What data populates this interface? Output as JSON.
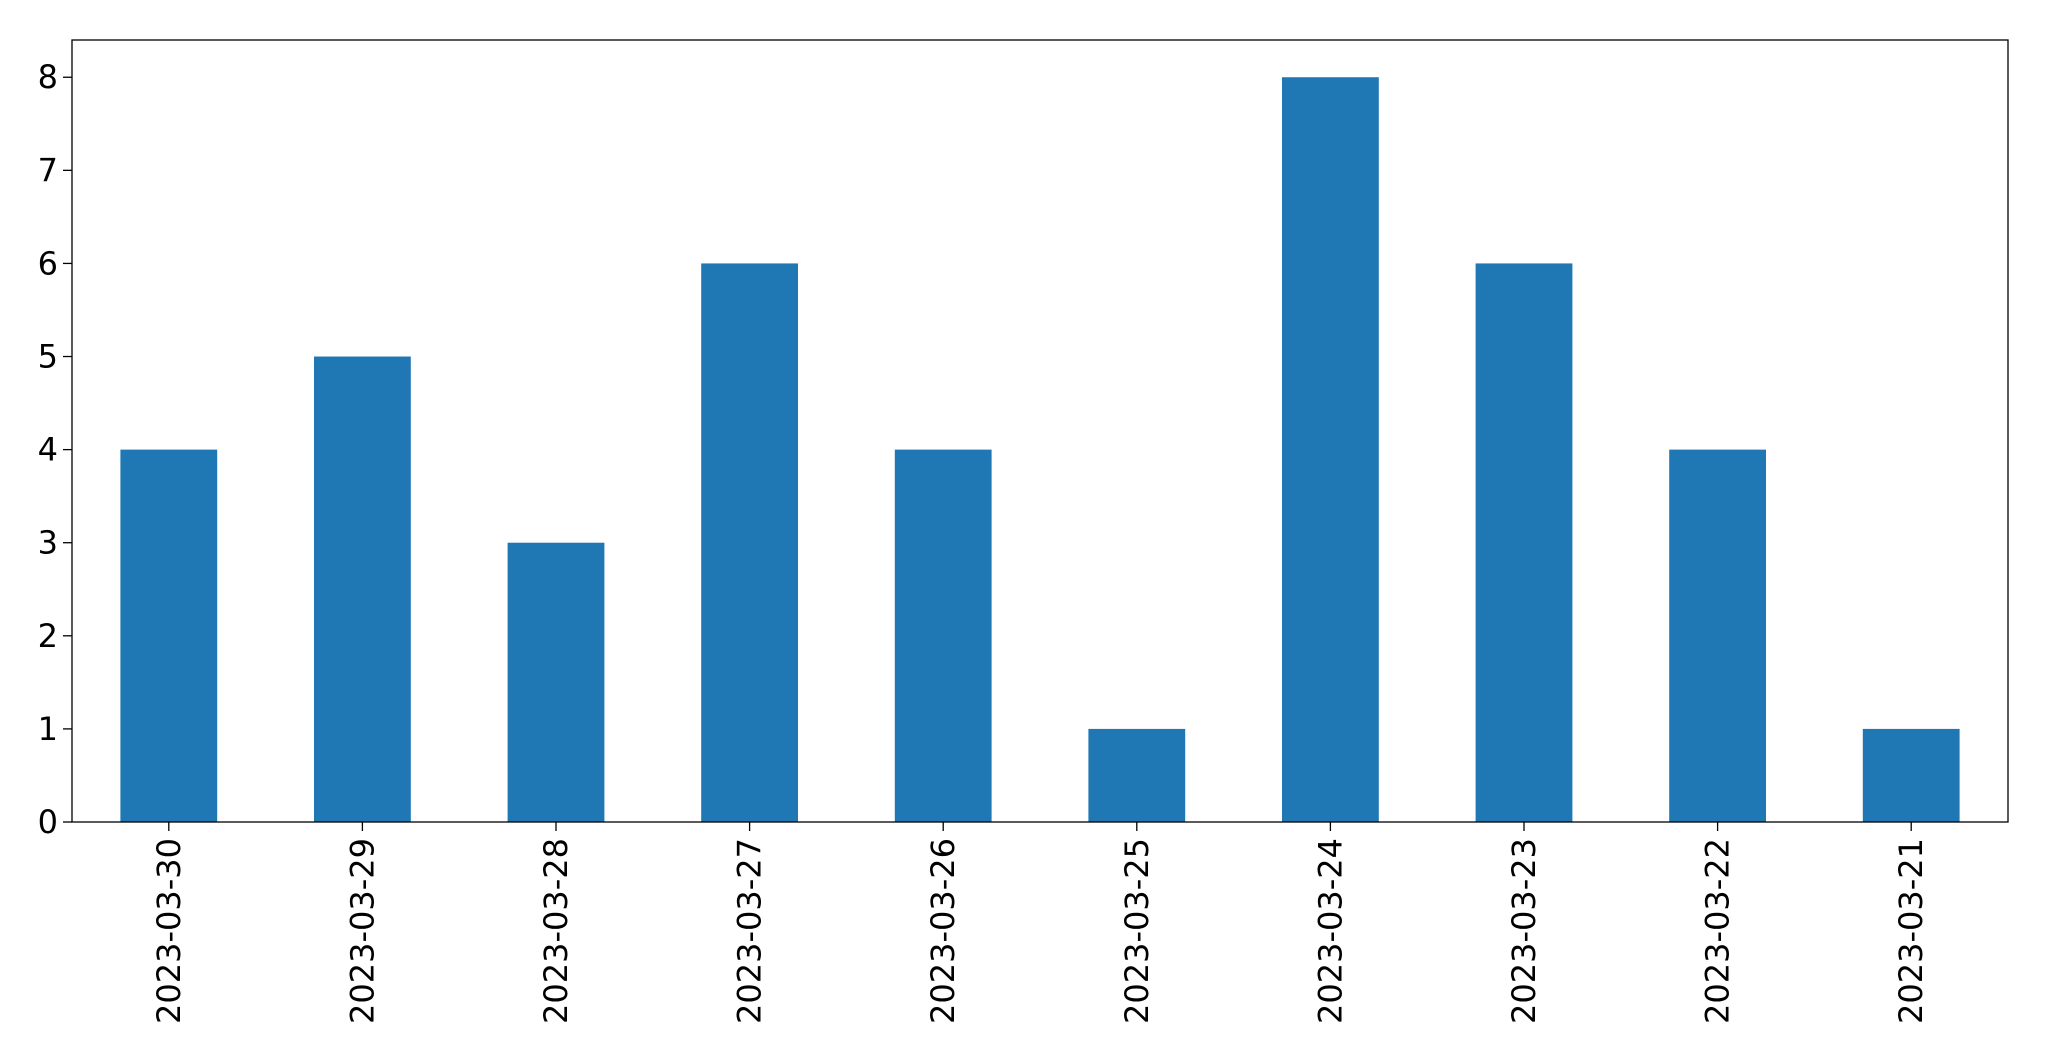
{
  "chart_data": {
    "type": "bar",
    "categories": [
      "2023-03-30",
      "2023-03-29",
      "2023-03-28",
      "2023-03-27",
      "2023-03-26",
      "2023-03-25",
      "2023-03-24",
      "2023-03-23",
      "2023-03-22",
      "2023-03-21"
    ],
    "values": [
      4,
      5,
      3,
      6,
      4,
      1,
      8,
      6,
      4,
      1
    ],
    "color": "#1f77b4",
    "ylim": [
      0,
      8.4
    ],
    "yticks": [
      0,
      1,
      2,
      3,
      4,
      5,
      6,
      7,
      8
    ],
    "grid": false
  }
}
